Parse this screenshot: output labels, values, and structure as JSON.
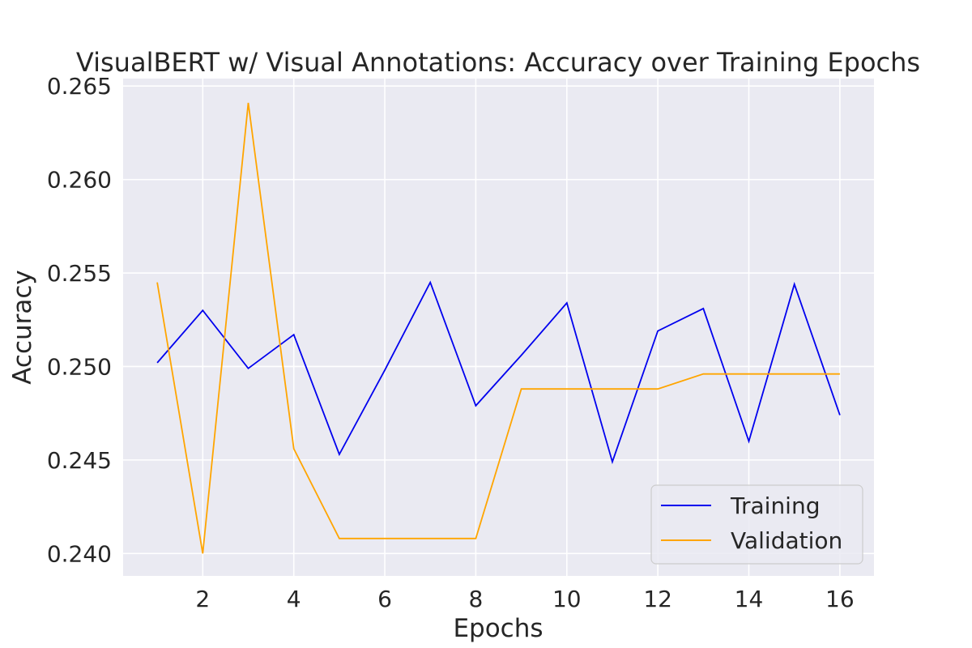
{
  "chart_data": {
    "type": "line",
    "title": "VisualBERT w/ Visual Annotations: Accuracy over Training Epochs",
    "xlabel": "Epochs",
    "ylabel": "Accuracy",
    "x": [
      1,
      2,
      3,
      4,
      5,
      6,
      7,
      8,
      9,
      10,
      11,
      12,
      13,
      14,
      15,
      16
    ],
    "xticks": [
      2,
      4,
      6,
      8,
      10,
      12,
      14,
      16
    ],
    "yticks": [
      0.24,
      0.245,
      0.25,
      0.255,
      0.26,
      0.265
    ],
    "ytick_labels": [
      "0.240",
      "0.245",
      "0.250",
      "0.255",
      "0.260",
      "0.265"
    ],
    "xlim": [
      0.25,
      16.75
    ],
    "ylim": [
      0.2388,
      0.2654
    ],
    "grid": true,
    "background_color": "#eaeaf2",
    "grid_color": "#ffffff",
    "legend_position": "lower-right",
    "series": [
      {
        "name": "Training",
        "color": "#0000ee",
        "values": [
          0.2502,
          0.253,
          0.2499,
          0.2517,
          0.2453,
          0.2498,
          0.2545,
          0.2479,
          0.2506,
          0.2534,
          0.2449,
          0.2519,
          0.2531,
          0.246,
          0.2544,
          0.2474
        ]
      },
      {
        "name": "Validation",
        "color": "#ffa500",
        "values": [
          0.2545,
          0.24,
          0.2641,
          0.2456,
          0.2408,
          0.2408,
          0.2408,
          0.2408,
          0.2488,
          0.2488,
          0.2488,
          0.2488,
          0.2496,
          0.2496,
          0.2496,
          0.2496
        ]
      }
    ]
  }
}
